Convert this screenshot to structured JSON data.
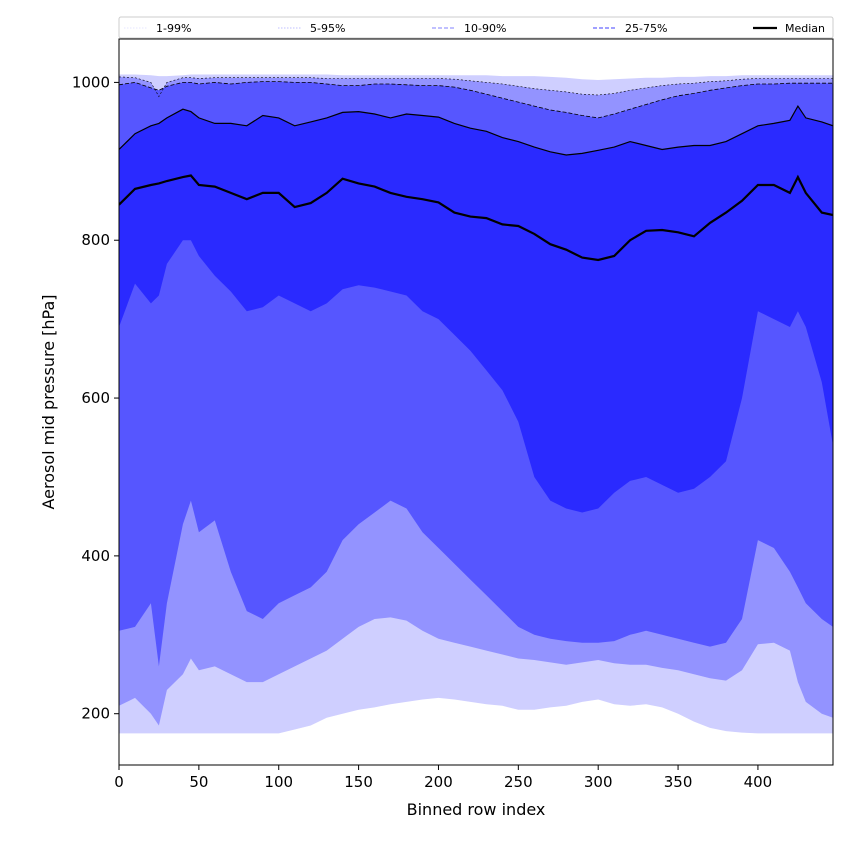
{
  "chart_data": {
    "type": "area",
    "title": "",
    "xlabel": "Binned row index",
    "ylabel": "Aerosol mid pressure [hPa]",
    "xlim": [
      0,
      447
    ],
    "ylim": [
      135,
      1055
    ],
    "x_ticks": [
      0,
      50,
      100,
      150,
      200,
      250,
      300,
      350,
      400
    ],
    "y_ticks": [
      200,
      400,
      600,
      800,
      1000
    ],
    "grid": false,
    "legend_position": "top",
    "legend": [
      {
        "label": "1-99%",
        "style": "dotted",
        "color": "#e6e6ff"
      },
      {
        "label": "5-95%",
        "style": "dotted",
        "color": "#bfbfff"
      },
      {
        "label": "10-90%",
        "style": "dashed",
        "color": "#9a9aff"
      },
      {
        "label": "25-75%",
        "style": "dashed",
        "color": "#6767ff"
      },
      {
        "label": "Median",
        "style": "solid",
        "color": "#000000"
      }
    ],
    "x": [
      0,
      10,
      20,
      25,
      30,
      40,
      45,
      50,
      60,
      70,
      80,
      90,
      100,
      110,
      120,
      130,
      140,
      150,
      160,
      170,
      180,
      190,
      200,
      210,
      220,
      230,
      240,
      250,
      260,
      270,
      280,
      290,
      300,
      310,
      320,
      330,
      340,
      350,
      360,
      370,
      380,
      390,
      400,
      410,
      420,
      425,
      430,
      440,
      447
    ],
    "series": [
      {
        "name": "1-99% upper",
        "values": [
          1010,
          1010,
          1009,
          1008,
          1008,
          1009,
          1010,
          1010,
          1010,
          1010,
          1010,
          1010,
          1010,
          1010,
          1010,
          1010,
          1009,
          1009,
          1009,
          1009,
          1009,
          1009,
          1009,
          1009,
          1009,
          1009,
          1008,
          1008,
          1008,
          1007,
          1006,
          1004,
          1003,
          1004,
          1005,
          1006,
          1006,
          1007,
          1007,
          1008,
          1008,
          1009,
          1009,
          1009,
          1009,
          1009,
          1009,
          1009,
          1009
        ]
      },
      {
        "name": "5-95% upper",
        "values": [
          1007,
          1006,
          1000,
          982,
          1000,
          1006,
          1006,
          1005,
          1006,
          1006,
          1006,
          1006,
          1006,
          1006,
          1006,
          1005,
          1005,
          1005,
          1005,
          1005,
          1005,
          1005,
          1005,
          1004,
          1002,
          1000,
          998,
          995,
          992,
          990,
          988,
          985,
          984,
          986,
          990,
          993,
          996,
          998,
          999,
          1001,
          1002,
          1004,
          1005,
          1005,
          1005,
          1005,
          1005,
          1005,
          1005
        ]
      },
      {
        "name": "10-90% upper",
        "values": [
          997,
          1000,
          993,
          990,
          995,
          1000,
          1000,
          998,
          1000,
          998,
          1000,
          1001,
          1001,
          1000,
          1000,
          998,
          996,
          996,
          998,
          998,
          997,
          996,
          996,
          994,
          990,
          985,
          980,
          975,
          970,
          965,
          962,
          958,
          955,
          960,
          966,
          972,
          978,
          983,
          986,
          990,
          993,
          996,
          998,
          998,
          999,
          999,
          999,
          999,
          999
        ]
      },
      {
        "name": "25-75% upper",
        "values": [
          915,
          935,
          945,
          948,
          955,
          966,
          963,
          955,
          948,
          948,
          945,
          958,
          955,
          945,
          950,
          955,
          962,
          963,
          960,
          955,
          960,
          958,
          956,
          948,
          942,
          938,
          930,
          925,
          918,
          912,
          908,
          910,
          914,
          918,
          925,
          920,
          915,
          918,
          920,
          920,
          925,
          935,
          945,
          948,
          952,
          970,
          955,
          950,
          945
        ]
      },
      {
        "name": "Median",
        "values": [
          845,
          865,
          870,
          872,
          875,
          880,
          882,
          870,
          868,
          860,
          852,
          860,
          860,
          842,
          847,
          860,
          878,
          872,
          868,
          860,
          855,
          852,
          848,
          835,
          830,
          828,
          820,
          818,
          808,
          795,
          788,
          778,
          775,
          780,
          800,
          812,
          813,
          810,
          805,
          822,
          835,
          850,
          870,
          870,
          860,
          880,
          860,
          835,
          832
        ]
      },
      {
        "name": "25-75% lower",
        "values": [
          690,
          745,
          720,
          730,
          770,
          800,
          800,
          780,
          755,
          735,
          710,
          715,
          730,
          720,
          710,
          720,
          738,
          743,
          740,
          735,
          730,
          710,
          700,
          680,
          660,
          635,
          610,
          570,
          500,
          470,
          460,
          455,
          460,
          480,
          495,
          500,
          490,
          480,
          485,
          500,
          520,
          600,
          710,
          700,
          690,
          710,
          690,
          620,
          540
        ]
      },
      {
        "name": "10-90% lower",
        "values": [
          305,
          310,
          340,
          260,
          340,
          440,
          470,
          430,
          445,
          380,
          330,
          320,
          340,
          350,
          360,
          380,
          420,
          440,
          455,
          470,
          460,
          430,
          410,
          390,
          370,
          350,
          330,
          310,
          300,
          295,
          292,
          290,
          290,
          292,
          300,
          305,
          300,
          295,
          290,
          285,
          290,
          320,
          420,
          410,
          380,
          360,
          340,
          320,
          310
        ]
      },
      {
        "name": "5-95% lower",
        "values": [
          210,
          220,
          200,
          185,
          230,
          250,
          270,
          255,
          260,
          250,
          240,
          240,
          250,
          260,
          270,
          280,
          295,
          310,
          320,
          322,
          318,
          305,
          295,
          290,
          285,
          280,
          275,
          270,
          268,
          265,
          262,
          265,
          268,
          264,
          262,
          262,
          258,
          255,
          250,
          245,
          242,
          255,
          288,
          290,
          280,
          240,
          215,
          200,
          195
        ]
      },
      {
        "name": "1-99% lower",
        "values": [
          175,
          175,
          175,
          175,
          175,
          175,
          175,
          175,
          175,
          175,
          175,
          175,
          175,
          180,
          185,
          195,
          200,
          205,
          208,
          212,
          215,
          218,
          220,
          218,
          215,
          212,
          210,
          205,
          205,
          208,
          210,
          215,
          218,
          212,
          210,
          212,
          208,
          200,
          190,
          182,
          178,
          176,
          175,
          175,
          175,
          175,
          175,
          175,
          175
        ]
      }
    ],
    "fill_colors": {
      "band_1_99": "#cfcfff",
      "band_5_95": "#9393ff",
      "band_10_90": "#5656ff",
      "band_25_75": "#2a2aff"
    }
  }
}
